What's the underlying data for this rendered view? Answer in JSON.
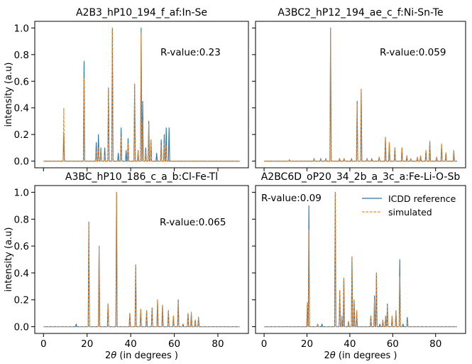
{
  "chart_data": [
    {
      "type": "line",
      "title": "A2B3_hP10_194_f_af:In-Se",
      "annotation": "R-value:0.23",
      "xlabel": "",
      "ylabel": "intensity (a.u)",
      "xlim": [
        -4,
        94
      ],
      "ylim": [
        -0.05,
        1.05
      ],
      "xticks": [],
      "yticks": [
        "0.0",
        "0.2",
        "0.4",
        "0.6",
        "0.8",
        "1.0"
      ],
      "series": [
        {
          "name": "ICDD reference",
          "color": "#1f77b4",
          "peaks": [
            [
              9.3,
              0.21
            ],
            [
              18.6,
              0.75
            ],
            [
              24.2,
              0.14
            ],
            [
              25.2,
              0.2
            ],
            [
              26.3,
              0.1
            ],
            [
              28.1,
              0.1
            ],
            [
              29.8,
              0.55
            ],
            [
              31.6,
              1.0
            ],
            [
              34.3,
              0.06
            ],
            [
              35.6,
              0.25
            ],
            [
              37.9,
              0.08
            ],
            [
              38.8,
              0.17
            ],
            [
              41.8,
              0.58
            ],
            [
              43.4,
              0.08
            ],
            [
              44.8,
              1.0
            ],
            [
              45.5,
              0.45
            ],
            [
              46.9,
              0.1
            ],
            [
              48.3,
              0.3
            ],
            [
              49.3,
              0.16
            ],
            [
              51.9,
              0.06
            ],
            [
              54.0,
              0.16
            ],
            [
              55.4,
              0.2
            ],
            [
              56.3,
              0.25
            ],
            [
              57.6,
              0.25
            ]
          ]
        },
        {
          "name": "simulated",
          "color": "#ff7f0e",
          "peaks": [
            [
              9.3,
              0.4
            ],
            [
              18.6,
              0.62
            ],
            [
              24.2,
              0.08
            ],
            [
              25.2,
              0.1
            ],
            [
              26.3,
              0.08
            ],
            [
              28.1,
              0.05
            ],
            [
              29.8,
              0.55
            ],
            [
              31.6,
              1.0
            ],
            [
              35.6,
              0.18
            ],
            [
              38.8,
              0.13
            ],
            [
              41.8,
              0.58
            ],
            [
              43.4,
              0.07
            ],
            [
              44.8,
              0.96
            ],
            [
              45.5,
              0.3
            ],
            [
              46.9,
              0.07
            ],
            [
              48.3,
              0.28
            ],
            [
              49.3,
              0.16
            ],
            [
              54.0,
              0.12
            ],
            [
              55.4,
              0.14
            ],
            [
              56.3,
              0.12
            ]
          ]
        }
      ]
    },
    {
      "type": "line",
      "title": "A3BC2_hP12_194_ae_c_f:Ni-Sn-Te",
      "annotation": "R-value:0.059",
      "xlabel": "",
      "ylabel": "",
      "xlim": [
        -4,
        94
      ],
      "ylim": [
        -0.05,
        1.05
      ],
      "xticks": [],
      "yticks": [],
      "series": [
        {
          "name": "ICDD reference",
          "color": "#1f77b4",
          "peaks": [
            [
              11.8,
              0.01
            ],
            [
              23.3,
              0.02
            ],
            [
              26.4,
              0.02
            ],
            [
              28.8,
              0.02
            ],
            [
              31.0,
              1.0
            ],
            [
              35.2,
              0.02
            ],
            [
              37.3,
              0.02
            ],
            [
              40.8,
              0.02
            ],
            [
              43.4,
              0.45
            ],
            [
              45.3,
              0.54
            ],
            [
              48.0,
              0.02
            ],
            [
              50.2,
              0.02
            ],
            [
              53.7,
              0.03
            ],
            [
              56.6,
              0.18
            ],
            [
              58.4,
              0.14
            ],
            [
              61.0,
              0.1
            ],
            [
              64.3,
              0.1
            ],
            [
              66.6,
              0.04
            ],
            [
              68.4,
              0.02
            ],
            [
              71.5,
              0.03
            ],
            [
              73.0,
              0.04
            ],
            [
              75.5,
              0.08
            ],
            [
              77.3,
              0.15
            ],
            [
              80.5,
              0.03
            ],
            [
              82.8,
              0.12
            ],
            [
              84.8,
              0.06
            ],
            [
              88.5,
              0.08
            ]
          ]
        },
        {
          "name": "simulated",
          "color": "#ff7f0e",
          "peaks": [
            [
              11.8,
              0.01
            ],
            [
              23.3,
              0.02
            ],
            [
              26.4,
              0.02
            ],
            [
              28.8,
              0.02
            ],
            [
              31.0,
              1.0
            ],
            [
              35.2,
              0.02
            ],
            [
              37.3,
              0.02
            ],
            [
              40.8,
              0.02
            ],
            [
              43.4,
              0.43
            ],
            [
              45.3,
              0.54
            ],
            [
              48.0,
              0.02
            ],
            [
              50.2,
              0.02
            ],
            [
              53.7,
              0.03
            ],
            [
              56.6,
              0.18
            ],
            [
              58.4,
              0.14
            ],
            [
              61.0,
              0.1
            ],
            [
              64.3,
              0.1
            ],
            [
              66.6,
              0.04
            ],
            [
              68.4,
              0.02
            ],
            [
              71.5,
              0.03
            ],
            [
              73.0,
              0.04
            ],
            [
              75.5,
              0.08
            ],
            [
              77.3,
              0.15
            ],
            [
              80.5,
              0.03
            ],
            [
              82.8,
              0.13
            ],
            [
              84.8,
              0.07
            ],
            [
              88.5,
              0.08
            ]
          ]
        }
      ]
    },
    {
      "type": "line",
      "title": "A3BC_hP10_186_c_a_b:Cl-Fe-Tl",
      "annotation": "R-value:0.065",
      "xlabel": "2θ (in degrees )",
      "ylabel": "intensity (a.u)",
      "xlim": [
        -4,
        94
      ],
      "ylim": [
        -0.05,
        1.05
      ],
      "xticks": [
        "0",
        "20",
        "40",
        "60",
        "80"
      ],
      "yticks": [
        "0.0",
        "0.2",
        "0.4",
        "0.6",
        "0.8",
        "1.0"
      ],
      "series": [
        {
          "name": "ICDD reference",
          "color": "#1f77b4",
          "peaks": [
            [
              15.0,
              0.02
            ],
            [
              20.8,
              0.78
            ],
            [
              25.5,
              0.6
            ],
            [
              29.6,
              0.17
            ],
            [
              33.5,
              1.0
            ],
            [
              39.6,
              0.1
            ],
            [
              42.3,
              0.46
            ],
            [
              44.6,
              0.13
            ],
            [
              47.3,
              0.12
            ],
            [
              49.8,
              0.14
            ],
            [
              52.3,
              0.2
            ],
            [
              54.6,
              0.16
            ],
            [
              57.3,
              0.12
            ],
            [
              59.6,
              0.08
            ],
            [
              61.8,
              0.2
            ],
            [
              64.0,
              0.02
            ],
            [
              66.3,
              0.1
            ],
            [
              67.8,
              0.1
            ],
            [
              69.6,
              0.05
            ],
            [
              71.1,
              0.07
            ]
          ]
        },
        {
          "name": "simulated",
          "color": "#ff7f0e",
          "peaks": [
            [
              20.8,
              0.78
            ],
            [
              25.5,
              0.6
            ],
            [
              29.6,
              0.17
            ],
            [
              33.5,
              1.0
            ],
            [
              39.6,
              0.1
            ],
            [
              42.3,
              0.46
            ],
            [
              44.6,
              0.13
            ],
            [
              47.3,
              0.12
            ],
            [
              49.8,
              0.14
            ],
            [
              52.3,
              0.2
            ],
            [
              54.6,
              0.16
            ],
            [
              57.3,
              0.12
            ],
            [
              59.6,
              0.08
            ],
            [
              61.8,
              0.18
            ],
            [
              64.0,
              0.02
            ],
            [
              66.3,
              0.1
            ],
            [
              67.8,
              0.11
            ],
            [
              69.6,
              0.05
            ],
            [
              71.1,
              0.07
            ]
          ]
        }
      ]
    },
    {
      "type": "line",
      "title": "A2BC6D_oP20_34_2b_a_3c_a:Fe-Li-O-Sb",
      "annotation": "R-value:0.09",
      "xlabel": "2θ (in degrees )",
      "ylabel": "",
      "xlim": [
        -4,
        94
      ],
      "ylim": [
        -0.05,
        1.05
      ],
      "xticks": [
        "0",
        "20",
        "40",
        "60",
        "80"
      ],
      "yticks": [],
      "legend": {
        "position": "upper-right",
        "entries": [
          "ICDD reference",
          "simulated"
        ]
      },
      "series": [
        {
          "name": "ICDD reference",
          "color": "#1f77b4",
          "peaks": [
            [
              20.2,
              0.18
            ],
            [
              20.9,
              0.9
            ],
            [
              25.0,
              0.02
            ],
            [
              27.0,
              0.02
            ],
            [
              33.2,
              1.0
            ],
            [
              35.3,
              0.27
            ],
            [
              36.3,
              0.08
            ],
            [
              37.2,
              0.36
            ],
            [
              39.4,
              0.04
            ],
            [
              41.0,
              0.52
            ],
            [
              42.0,
              0.2
            ],
            [
              43.2,
              0.12
            ],
            [
              49.8,
              0.08
            ],
            [
              51.5,
              0.23
            ],
            [
              52.4,
              0.4
            ],
            [
              54.0,
              0.02
            ],
            [
              55.4,
              0.05
            ],
            [
              56.7,
              0.08
            ],
            [
              57.5,
              0.17
            ],
            [
              59.7,
              0.08
            ],
            [
              61.5,
              0.12
            ],
            [
              63.3,
              0.5
            ],
            [
              64.8,
              0.02
            ],
            [
              66.8,
              0.07
            ]
          ]
        },
        {
          "name": "simulated",
          "color": "#ff7f0e",
          "peaks": [
            [
              20.2,
              0.18
            ],
            [
              20.9,
              0.72
            ],
            [
              25.0,
              0.02
            ],
            [
              33.2,
              1.0
            ],
            [
              35.3,
              0.27
            ],
            [
              36.3,
              0.08
            ],
            [
              37.2,
              0.36
            ],
            [
              39.4,
              0.04
            ],
            [
              41.0,
              0.52
            ],
            [
              42.0,
              0.2
            ],
            [
              43.2,
              0.12
            ],
            [
              49.8,
              0.08
            ],
            [
              51.5,
              0.2
            ],
            [
              52.4,
              0.4
            ],
            [
              55.4,
              0.05
            ],
            [
              56.7,
              0.08
            ],
            [
              57.5,
              0.16
            ],
            [
              59.7,
              0.08
            ],
            [
              61.5,
              0.12
            ],
            [
              63.3,
              0.37
            ],
            [
              66.8,
              0.04
            ]
          ]
        }
      ]
    }
  ]
}
